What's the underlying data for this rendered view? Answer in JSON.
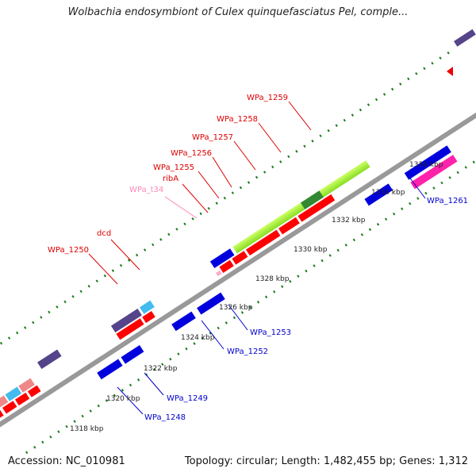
{
  "title": "Wolbachia endosymbiont of Culex quinquefasciatus Pel, comple...",
  "footer": {
    "accession": "Accession: NC_010981",
    "summary": "Topology: circular; Length: 1,482,455 bp; Genes: 1,312"
  },
  "colors": {
    "forward_cds": "#ff0000",
    "reverse_cds": "#0000dd",
    "trna": "#ffaacc",
    "backbone": "#999999",
    "tick": "#1a7a1a",
    "upper_label": "#dd0000",
    "lower_label": "#0000cc",
    "trna_label": "#ff88bb"
  },
  "scale_labels": [
    "1318 kbp",
    "1320 kbp",
    "1322 kbp",
    "1324 kbp",
    "1326 kbp",
    "1328 kbp",
    "1330 kbp",
    "1332 kbp",
    "1334 kbp",
    "1336 kbp"
  ],
  "upper_labels": [
    "WPa_1250",
    "dcd",
    "WPa_t34",
    "ribA",
    "WPa_1255",
    "WPa_1256",
    "WPa_1257",
    "WPa_1258",
    "WPa_1259"
  ],
  "lower_labels": [
    "WPa_1248",
    "WPa_1249",
    "WPa_1252",
    "WPa_1253",
    "WPa_1261"
  ]
}
